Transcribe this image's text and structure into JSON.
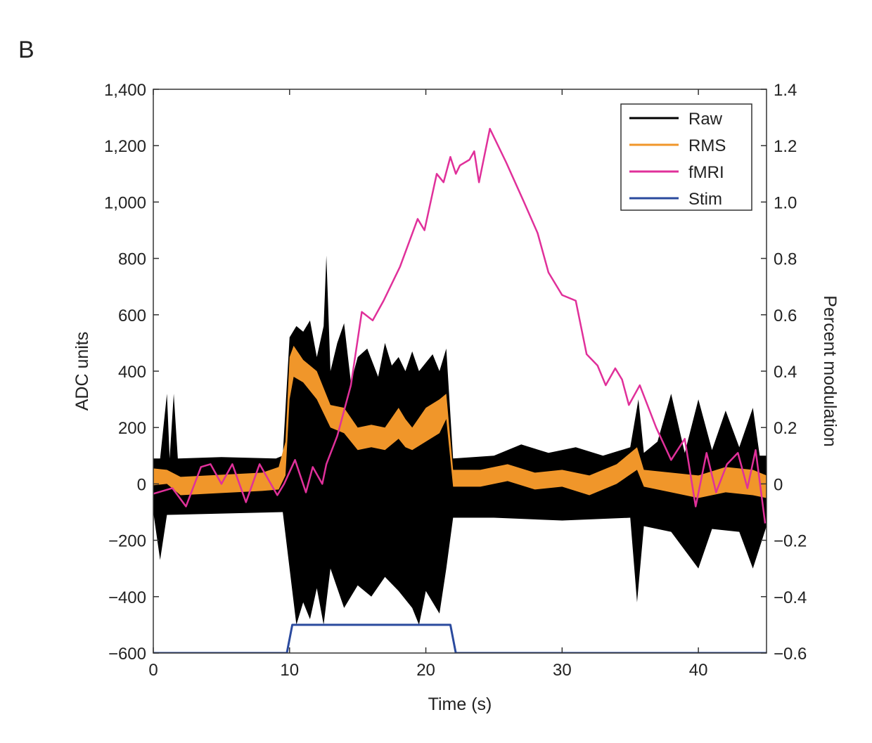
{
  "panel_label": "B",
  "chart_data": {
    "type": "line",
    "xlabel": "Time (s)",
    "ylabel": "ADC units",
    "y2label": "Percent modulation",
    "xlim": [
      0,
      45
    ],
    "ylim": [
      -600,
      1400
    ],
    "y2lim": [
      -0.6,
      1.4
    ],
    "xticks": [
      0,
      10,
      20,
      30,
      40
    ],
    "xtick_labels": [
      "0",
      "10",
      "20",
      "30",
      "40"
    ],
    "yticks": [
      -600,
      -400,
      -200,
      0,
      200,
      400,
      600,
      800,
      1000,
      1200,
      1400
    ],
    "ytick_labels": [
      "−600",
      "−400",
      "−200",
      "0",
      "200",
      "400",
      "600",
      "800",
      "1,000",
      "1,200",
      "1,400"
    ],
    "y2ticks": [
      -0.6,
      -0.4,
      -0.2,
      0,
      0.2,
      0.4,
      0.6,
      0.8,
      1.0,
      1.2,
      1.4
    ],
    "y2tick_labels": [
      "−0.6",
      "−0.4",
      "−0.2",
      "0",
      "0.2",
      "0.4",
      "0.6",
      "0.8",
      "1.0",
      "1.2",
      "1.4"
    ],
    "grid": false,
    "legend_position": "top-right",
    "legend": [
      {
        "name": "Raw",
        "color": "#000000"
      },
      {
        "name": "RMS",
        "color": "#f0962a"
      },
      {
        "name": "fMRI",
        "color": "#e0309a"
      },
      {
        "name": "Stim",
        "color": "#2a4a9e"
      }
    ],
    "series": [
      {
        "name": "Raw",
        "axis": "left",
        "kind": "envelope",
        "upper": [
          [
            0,
            90
          ],
          [
            0.5,
            90
          ],
          [
            1,
            320
          ],
          [
            1.2,
            90
          ],
          [
            1.5,
            320
          ],
          [
            1.8,
            90
          ],
          [
            5,
            95
          ],
          [
            9,
            90
          ],
          [
            9.5,
            100
          ],
          [
            10,
            520
          ],
          [
            10.5,
            560
          ],
          [
            11,
            540
          ],
          [
            11.5,
            580
          ],
          [
            12,
            450
          ],
          [
            12.5,
            560
          ],
          [
            12.7,
            810
          ],
          [
            13,
            400
          ],
          [
            13.5,
            500
          ],
          [
            14,
            570
          ],
          [
            14.5,
            360
          ],
          [
            15,
            450
          ],
          [
            15.7,
            480
          ],
          [
            16.5,
            380
          ],
          [
            17,
            500
          ],
          [
            17.5,
            420
          ],
          [
            18,
            450
          ],
          [
            18.5,
            400
          ],
          [
            19,
            470
          ],
          [
            19.5,
            400
          ],
          [
            20.5,
            460
          ],
          [
            21,
            400
          ],
          [
            21.5,
            480
          ],
          [
            22,
            90
          ],
          [
            25,
            100
          ],
          [
            27,
            140
          ],
          [
            29,
            110
          ],
          [
            31,
            130
          ],
          [
            33,
            100
          ],
          [
            35,
            130
          ],
          [
            35.6,
            300
          ],
          [
            36,
            110
          ],
          [
            37,
            150
          ],
          [
            38,
            320
          ],
          [
            39,
            110
          ],
          [
            40,
            300
          ],
          [
            41,
            120
          ],
          [
            42,
            260
          ],
          [
            43,
            130
          ],
          [
            44,
            270
          ],
          [
            44.5,
            100
          ],
          [
            45,
            100
          ]
        ],
        "lower": [
          [
            0,
            -100
          ],
          [
            0.5,
            -270
          ],
          [
            1,
            -110
          ],
          [
            9.5,
            -100
          ],
          [
            10,
            -300
          ],
          [
            10.5,
            -500
          ],
          [
            11,
            -420
          ],
          [
            11.5,
            -480
          ],
          [
            12,
            -370
          ],
          [
            12.5,
            -500
          ],
          [
            13,
            -300
          ],
          [
            14,
            -440
          ],
          [
            15,
            -360
          ],
          [
            16,
            -400
          ],
          [
            17,
            -330
          ],
          [
            18,
            -380
          ],
          [
            19,
            -440
          ],
          [
            19.5,
            -500
          ],
          [
            20,
            -380
          ],
          [
            21,
            -460
          ],
          [
            21.5,
            -300
          ],
          [
            22,
            -120
          ],
          [
            25,
            -120
          ],
          [
            30,
            -130
          ],
          [
            35,
            -120
          ],
          [
            35.5,
            -420
          ],
          [
            36,
            -150
          ],
          [
            38,
            -170
          ],
          [
            40,
            -300
          ],
          [
            41,
            -160
          ],
          [
            43,
            -170
          ],
          [
            44,
            -300
          ],
          [
            45,
            -150
          ]
        ]
      },
      {
        "name": "RMS",
        "axis": "left",
        "kind": "band",
        "upper": [
          [
            0,
            55
          ],
          [
            1,
            50
          ],
          [
            2,
            25
          ],
          [
            4,
            30
          ],
          [
            6,
            35
          ],
          [
            8,
            40
          ],
          [
            9.2,
            60
          ],
          [
            9.7,
            150
          ],
          [
            10,
            450
          ],
          [
            10.3,
            490
          ],
          [
            11,
            440
          ],
          [
            12,
            400
          ],
          [
            13,
            280
          ],
          [
            14,
            270
          ],
          [
            15,
            200
          ],
          [
            16,
            210
          ],
          [
            17,
            200
          ],
          [
            18,
            270
          ],
          [
            18.5,
            230
          ],
          [
            19,
            200
          ],
          [
            20,
            270
          ],
          [
            21,
            300
          ],
          [
            21.5,
            320
          ],
          [
            22,
            50
          ],
          [
            24,
            50
          ],
          [
            26,
            70
          ],
          [
            28,
            40
          ],
          [
            30,
            50
          ],
          [
            32,
            30
          ],
          [
            34,
            70
          ],
          [
            35.5,
            130
          ],
          [
            36,
            50
          ],
          [
            38,
            40
          ],
          [
            40,
            30
          ],
          [
            42,
            60
          ],
          [
            44,
            50
          ],
          [
            45,
            30
          ]
        ],
        "lower": [
          [
            0,
            -5
          ],
          [
            1,
            0
          ],
          [
            2,
            -40
          ],
          [
            4,
            -35
          ],
          [
            6,
            -30
          ],
          [
            8,
            -25
          ],
          [
            9.2,
            -20
          ],
          [
            9.7,
            30
          ],
          [
            10,
            300
          ],
          [
            10.3,
            380
          ],
          [
            11,
            360
          ],
          [
            12,
            300
          ],
          [
            13,
            200
          ],
          [
            14,
            180
          ],
          [
            15,
            120
          ],
          [
            16,
            130
          ],
          [
            17,
            120
          ],
          [
            18,
            160
          ],
          [
            18.5,
            130
          ],
          [
            19,
            120
          ],
          [
            20,
            150
          ],
          [
            21,
            180
          ],
          [
            21.5,
            230
          ],
          [
            22,
            -10
          ],
          [
            24,
            -10
          ],
          [
            26,
            10
          ],
          [
            28,
            -20
          ],
          [
            30,
            -10
          ],
          [
            32,
            -40
          ],
          [
            34,
            0
          ],
          [
            35.5,
            50
          ],
          [
            36,
            -10
          ],
          [
            38,
            -30
          ],
          [
            40,
            -50
          ],
          [
            42,
            -30
          ],
          [
            44,
            -40
          ],
          [
            45,
            -50
          ]
        ]
      },
      {
        "name": "fMRI",
        "axis": "right",
        "kind": "line",
        "points": [
          [
            0,
            -0.035
          ],
          [
            1.4,
            -0.015
          ],
          [
            2.4,
            -0.08
          ],
          [
            3.5,
            0.06
          ],
          [
            4.2,
            0.07
          ],
          [
            5,
            0
          ],
          [
            5.8,
            0.07
          ],
          [
            6.8,
            -0.065
          ],
          [
            7.8,
            0.07
          ],
          [
            9.1,
            -0.04
          ],
          [
            9.6,
            0
          ],
          [
            10.4,
            0.085
          ],
          [
            11.2,
            -0.03
          ],
          [
            11.7,
            0.06
          ],
          [
            12.4,
            0
          ],
          [
            12.7,
            0.07
          ],
          [
            13.5,
            0.17
          ],
          [
            14.5,
            0.35
          ],
          [
            15.3,
            0.61
          ],
          [
            16.1,
            0.58
          ],
          [
            16.9,
            0.65
          ],
          [
            18.1,
            0.77
          ],
          [
            19.4,
            0.94
          ],
          [
            19.9,
            0.9
          ],
          [
            20.8,
            1.1
          ],
          [
            21.3,
            1.07
          ],
          [
            21.8,
            1.16
          ],
          [
            22.2,
            1.1
          ],
          [
            22.5,
            1.13
          ],
          [
            23.2,
            1.15
          ],
          [
            23.55,
            1.18
          ],
          [
            23.9,
            1.07
          ],
          [
            24.7,
            1.26
          ],
          [
            25.9,
            1.14
          ],
          [
            27.2,
            1.0
          ],
          [
            28.2,
            0.89
          ],
          [
            29,
            0.75
          ],
          [
            30,
            0.67
          ],
          [
            31,
            0.65
          ],
          [
            31.8,
            0.46
          ],
          [
            32.6,
            0.42
          ],
          [
            33.2,
            0.35
          ],
          [
            33.9,
            0.41
          ],
          [
            34.4,
            0.37
          ],
          [
            34.9,
            0.28
          ],
          [
            35.7,
            0.35
          ],
          [
            36.9,
            0.2
          ],
          [
            38,
            0.085
          ],
          [
            39,
            0.16
          ],
          [
            39.8,
            -0.08
          ],
          [
            40.6,
            0.11
          ],
          [
            41.3,
            -0.03
          ],
          [
            42.1,
            0.07
          ],
          [
            42.9,
            0.11
          ],
          [
            43.6,
            -0.015
          ],
          [
            44.2,
            0.12
          ],
          [
            44.9,
            -0.14
          ]
        ]
      },
      {
        "name": "Stim",
        "axis": "left",
        "kind": "line",
        "points": [
          [
            0,
            -600
          ],
          [
            9.8,
            -600
          ],
          [
            10.2,
            -500
          ],
          [
            21.8,
            -500
          ],
          [
            22.2,
            -600
          ],
          [
            45,
            -600
          ]
        ]
      }
    ]
  }
}
